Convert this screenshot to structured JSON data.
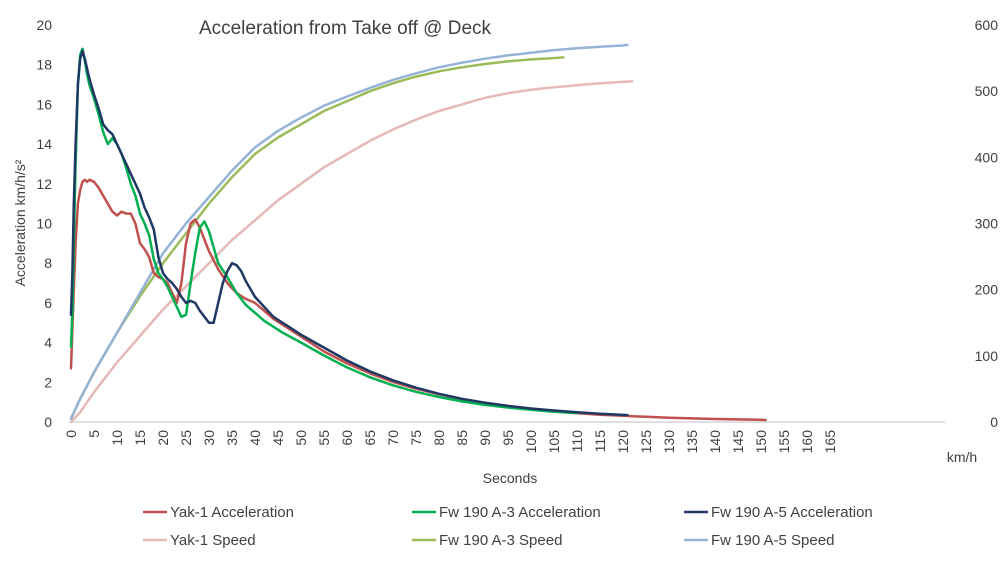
{
  "chart_data": {
    "type": "line",
    "title": "Acceleration from Take off @ Deck",
    "xlabel": "Seconds",
    "ylabel": "Acceleration km/h/s²",
    "y2label": "km/h",
    "xlim": [
      0,
      190
    ],
    "ylim": [
      0,
      20
    ],
    "y2lim": [
      0,
      600
    ],
    "x_ticks": [
      0,
      5,
      10,
      15,
      20,
      25,
      30,
      35,
      40,
      45,
      50,
      55,
      60,
      65,
      70,
      75,
      80,
      85,
      90,
      95,
      100,
      105,
      110,
      115,
      120,
      125,
      130,
      135,
      140,
      145,
      150,
      155,
      160,
      165
    ],
    "y_ticks": [
      0,
      2,
      4,
      6,
      8,
      10,
      12,
      14,
      16,
      18,
      20
    ],
    "y2_ticks": [
      0,
      100,
      200,
      300,
      400,
      500,
      600
    ],
    "grid": false,
    "legend_position": "bottom",
    "series": [
      {
        "name": "Yak-1 Acceleration",
        "color": "#c0504d",
        "axis": "left",
        "x": [
          0,
          0.5,
          1,
          1.5,
          2,
          2.5,
          3,
          3.5,
          4,
          5,
          6,
          7,
          8,
          9,
          10,
          11,
          12,
          13,
          14,
          15,
          16,
          17,
          18,
          19,
          20,
          21,
          22,
          23,
          24,
          25,
          26,
          27,
          28,
          29,
          30,
          32,
          34,
          36,
          38,
          40,
          42,
          44,
          46,
          48,
          50,
          55,
          60,
          65,
          70,
          75,
          80,
          85,
          90,
          95,
          100,
          105,
          110,
          115,
          120,
          125,
          130,
          135,
          140,
          145,
          150,
          151
        ],
        "y": [
          2.7,
          6,
          9,
          11,
          11.7,
          12.1,
          12.2,
          12.1,
          12.2,
          12.1,
          11.8,
          11.4,
          11.0,
          10.6,
          10.4,
          10.6,
          10.5,
          10.5,
          10.0,
          9.0,
          8.7,
          8.3,
          7.5,
          7.3,
          7.2,
          7.0,
          6.5,
          6.0,
          7.0,
          9.0,
          10.0,
          10.2,
          9.8,
          9.2,
          8.6,
          7.7,
          7.0,
          6.5,
          6.2,
          6.0,
          5.6,
          5.2,
          4.9,
          4.6,
          4.3,
          3.55,
          2.95,
          2.45,
          2.02,
          1.68,
          1.4,
          1.15,
          0.96,
          0.79,
          0.65,
          0.54,
          0.45,
          0.37,
          0.31,
          0.26,
          0.21,
          0.18,
          0.15,
          0.13,
          0.11,
          0.1
        ]
      },
      {
        "name": "Fw 190 A-3 Acceleration",
        "color": "#00b050",
        "axis": "left",
        "x": [
          0,
          0.3,
          0.6,
          1,
          1.5,
          2,
          2.5,
          3,
          3.5,
          4,
          5,
          6,
          7,
          8,
          9,
          10,
          11,
          12,
          13,
          14,
          15,
          16,
          17,
          18,
          19,
          20,
          21,
          22,
          23,
          24,
          25,
          26,
          27,
          28,
          29,
          30,
          31,
          32,
          34,
          36,
          38,
          40,
          42,
          44,
          46,
          48,
          50,
          55,
          60,
          65,
          70,
          75,
          80,
          85,
          90,
          95,
          100,
          105,
          110
        ],
        "y": [
          3.8,
          5.5,
          9,
          13,
          17,
          18.5,
          18.8,
          18.2,
          17.5,
          17.0,
          16.3,
          15.5,
          14.6,
          14.0,
          14.3,
          14.0,
          13.5,
          12.8,
          12.0,
          11.4,
          10.5,
          10.0,
          9.4,
          8.2,
          7.5,
          7.2,
          6.8,
          6.3,
          5.8,
          5.3,
          5.4,
          7.0,
          8.5,
          9.8,
          10.1,
          9.6,
          8.8,
          8.0,
          7.3,
          6.5,
          5.9,
          5.5,
          5.1,
          4.8,
          4.5,
          4.25,
          4.0,
          3.35,
          2.75,
          2.25,
          1.85,
          1.52,
          1.26,
          1.04,
          0.86,
          0.73,
          0.62,
          0.52,
          0.45
        ]
      },
      {
        "name": "Fw 190 A-5 Acceleration",
        "color": "#1f3864",
        "axis": "left",
        "x": [
          0,
          0.3,
          0.6,
          1,
          1.5,
          2,
          2.5,
          3,
          3.5,
          4,
          5,
          6,
          7,
          8,
          9,
          10,
          11,
          12,
          13,
          14,
          15,
          16,
          17,
          18,
          19,
          20,
          21,
          22,
          23,
          24,
          25,
          26,
          27,
          28,
          29,
          30,
          31,
          32,
          33,
          34,
          35,
          36,
          37,
          38,
          40,
          42,
          44,
          46,
          48,
          50,
          55,
          60,
          65,
          70,
          75,
          80,
          85,
          90,
          95,
          100,
          105,
          110,
          115,
          120,
          121
        ],
        "y": [
          5.4,
          7.5,
          11,
          14,
          17,
          18.3,
          18.7,
          18.3,
          17.8,
          17.3,
          16.5,
          15.8,
          15.0,
          14.7,
          14.5,
          14.0,
          13.5,
          13.0,
          12.5,
          12.0,
          11.5,
          10.8,
          10.3,
          9.7,
          8.3,
          7.5,
          7.2,
          7.0,
          6.7,
          6.3,
          6.0,
          6.1,
          6.0,
          5.6,
          5.3,
          5.0,
          5.0,
          6.0,
          7.0,
          7.6,
          8.0,
          7.9,
          7.6,
          7.1,
          6.3,
          5.8,
          5.3,
          5.0,
          4.7,
          4.4,
          3.75,
          3.1,
          2.55,
          2.1,
          1.73,
          1.42,
          1.17,
          0.97,
          0.81,
          0.68,
          0.58,
          0.49,
          0.42,
          0.36,
          0.35
        ]
      },
      {
        "name": "Yak-1 Speed",
        "color": "#e6b9b8",
        "axis": "right",
        "x": [
          0,
          2,
          5,
          10,
          15,
          20,
          25,
          30,
          35,
          40,
          45,
          50,
          55,
          60,
          65,
          70,
          75,
          80,
          85,
          90,
          95,
          100,
          105,
          110,
          115,
          120,
          122
        ],
        "y": [
          0,
          15,
          45,
          90,
          130,
          170,
          205,
          240,
          275,
          305,
          335,
          360,
          385,
          405,
          425,
          442,
          457,
          470,
          480,
          490,
          497,
          502,
          506,
          509,
          512,
          514,
          515
        ]
      },
      {
        "name": "Fw 190 A-3 Speed",
        "color": "#9bbb59",
        "axis": "right",
        "x": [
          0,
          2,
          5,
          10,
          15,
          20,
          25,
          30,
          35,
          40,
          45,
          50,
          55,
          60,
          65,
          70,
          75,
          80,
          85,
          90,
          95,
          100,
          105,
          107
        ],
        "y": [
          5,
          35,
          75,
          135,
          190,
          240,
          285,
          330,
          370,
          405,
          430,
          450,
          470,
          485,
          500,
          512,
          522,
          530,
          536,
          541,
          545,
          548,
          550,
          551
        ]
      },
      {
        "name": "Fw 190 A-5 Speed",
        "color": "#95b3d7",
        "axis": "right",
        "x": [
          0,
          2,
          5,
          10,
          15,
          20,
          25,
          30,
          35,
          40,
          45,
          50,
          55,
          60,
          65,
          70,
          75,
          80,
          85,
          90,
          95,
          100,
          105,
          110,
          115,
          120,
          121
        ],
        "y": [
          5,
          35,
          75,
          135,
          195,
          255,
          300,
          340,
          380,
          415,
          440,
          460,
          478,
          492,
          505,
          517,
          527,
          536,
          543,
          549,
          554,
          558,
          562,
          565,
          567,
          569,
          570
        ]
      }
    ]
  }
}
